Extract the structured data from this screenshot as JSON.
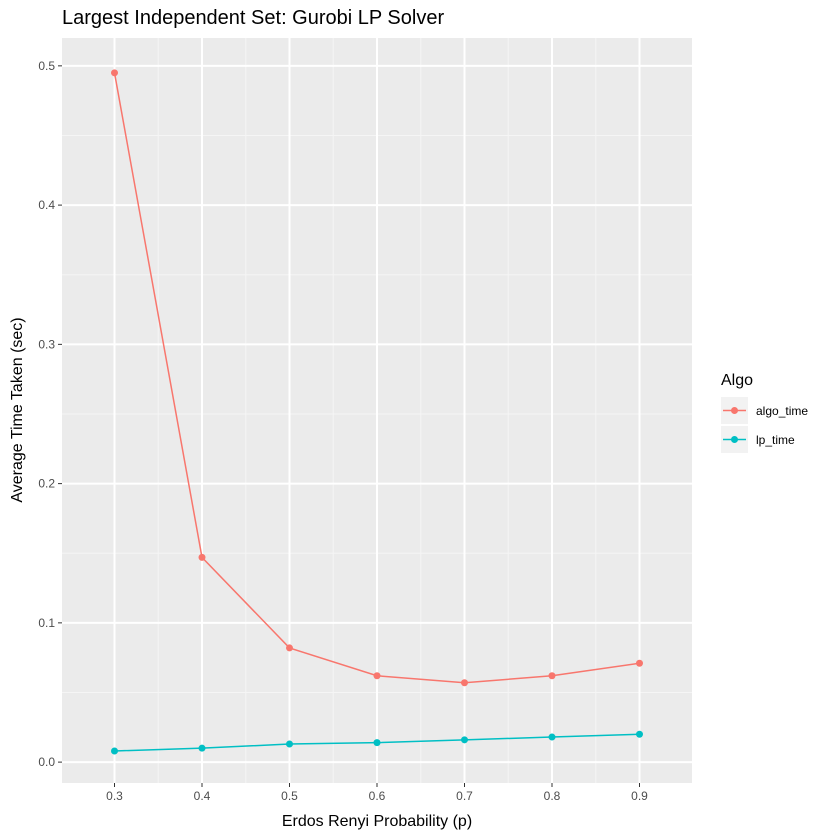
{
  "chart_data": {
    "type": "line",
    "title": "Largest Independent Set: Gurobi LP Solver",
    "xlabel": "Erdos Renyi Probability (p)",
    "ylabel": "Average Time Taken (sec)",
    "x": [
      0.3,
      0.4,
      0.5,
      0.6,
      0.7,
      0.8,
      0.9
    ],
    "xticks": [
      "0.3",
      "0.4",
      "0.5",
      "0.6",
      "0.7",
      "0.8",
      "0.9"
    ],
    "yticks": [
      "0.0",
      "0.1",
      "0.2",
      "0.3",
      "0.4",
      "0.5"
    ],
    "xlim": [
      0.24,
      0.96
    ],
    "ylim": [
      -0.015,
      0.52
    ],
    "grid": true,
    "legend": {
      "title": "Algo",
      "placement": "right"
    },
    "series": [
      {
        "name": "algo_time",
        "color": "#F8766D",
        "values": [
          0.495,
          0.147,
          0.082,
          0.062,
          0.057,
          0.062,
          0.071
        ]
      },
      {
        "name": "lp_time",
        "color": "#00BFC4",
        "values": [
          0.008,
          0.01,
          0.013,
          0.014,
          0.016,
          0.018,
          0.02
        ]
      }
    ]
  }
}
